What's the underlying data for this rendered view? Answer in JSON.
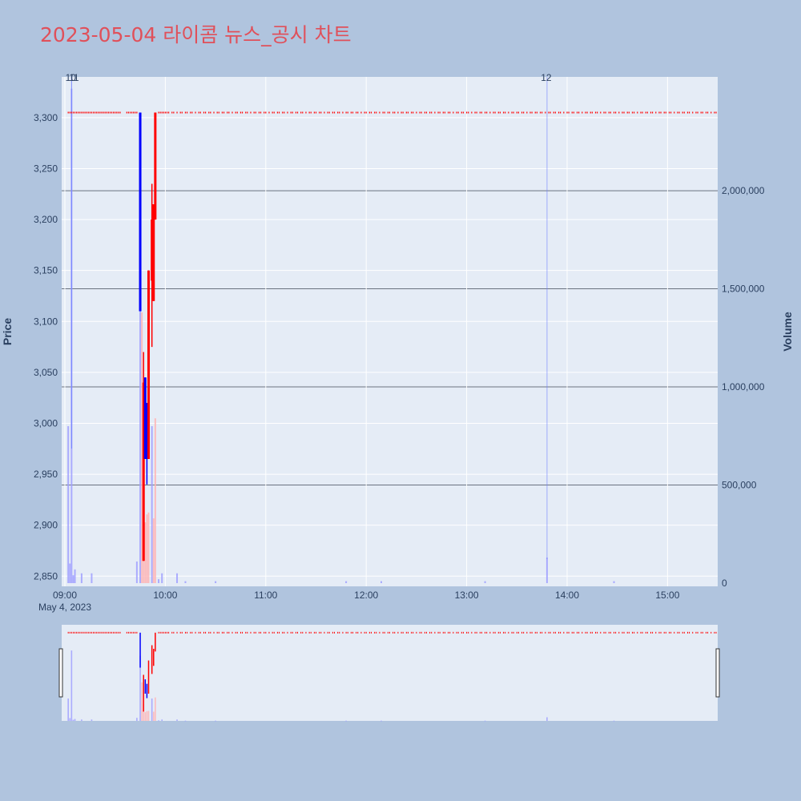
{
  "title": "2023-05-04 라이콤 뉴스_공시 차트",
  "colors": {
    "background": "#b0c4de",
    "plot_bg": "#e5ecf6",
    "up": "#ff0000",
    "down": "#0000ff",
    "title": "#e0505a",
    "volume_up": "#ffb4b4",
    "volume_down": "#a0a0ff"
  },
  "chart_data": {
    "type": "candlestick",
    "title": "2023-05-04 라이콤 뉴스_공시 차트",
    "ylabel": "Price",
    "y2label": "Volume",
    "ylim": [
      2840,
      3340
    ],
    "y2lim": [
      0,
      2580000
    ],
    "y_ticks": [
      "2,850",
      "2,900",
      "2,950",
      "3,000",
      "3,050",
      "3,100",
      "3,150",
      "3,200",
      "3,250",
      "3,300"
    ],
    "y2_ticks": [
      "0",
      "500,000",
      "1,000,000",
      "1,500,000",
      "2,000,000"
    ],
    "x_ticks": [
      "09:00",
      "10:00",
      "11:00",
      "12:00",
      "13:00",
      "14:00",
      "15:00"
    ],
    "x_date_label": "May 4, 2023",
    "annotations": [
      {
        "label": "10",
        "time": "09:04"
      },
      {
        "label": "11",
        "time": "09:04"
      },
      {
        "label": "12",
        "time": "13:48"
      }
    ],
    "candles": [
      {
        "time": "09:45",
        "open": 3305,
        "high": 3305,
        "low": 3110,
        "close": 3110
      },
      {
        "time": "09:47",
        "open": 2865,
        "high": 3070,
        "low": 2865,
        "close": 3040
      },
      {
        "time": "09:48",
        "open": 3045,
        "high": 3045,
        "low": 2965,
        "close": 2965
      },
      {
        "time": "09:49",
        "open": 3020,
        "high": 3020,
        "low": 2940,
        "close": 2965
      },
      {
        "time": "09:50",
        "open": 2965,
        "high": 3150,
        "low": 2965,
        "close": 3150
      },
      {
        "time": "09:52",
        "open": 3140,
        "high": 3235,
        "low": 3075,
        "close": 3200
      },
      {
        "time": "09:53",
        "open": 3120,
        "high": 3215,
        "low": 3120,
        "close": 3215
      },
      {
        "time": "09:54",
        "open": 3200,
        "high": 3305,
        "low": 3200,
        "close": 3305
      }
    ],
    "flat_price": 3305,
    "flat_start": "09:02",
    "flat_end": "15:30",
    "volume": [
      {
        "time": "09:02",
        "value": 800000,
        "dir": "down"
      },
      {
        "time": "09:03",
        "value": 100000,
        "dir": "down"
      },
      {
        "time": "09:04",
        "value": 2520000,
        "dir": "down"
      },
      {
        "time": "09:05",
        "value": 40000,
        "dir": "down"
      },
      {
        "time": "09:06",
        "value": 70000,
        "dir": "down"
      },
      {
        "time": "09:10",
        "value": 50000,
        "dir": "down"
      },
      {
        "time": "09:16",
        "value": 50000,
        "dir": "down"
      },
      {
        "time": "09:43",
        "value": 110000,
        "dir": "down"
      },
      {
        "time": "09:45",
        "value": 2330000,
        "dir": "down"
      },
      {
        "time": "09:46",
        "value": 1380000,
        "dir": "up"
      },
      {
        "time": "09:47",
        "value": 600000,
        "dir": "up"
      },
      {
        "time": "09:48",
        "value": 310000,
        "dir": "up"
      },
      {
        "time": "09:49",
        "value": 350000,
        "dir": "up"
      },
      {
        "time": "09:50",
        "value": 360000,
        "dir": "up"
      },
      {
        "time": "09:52",
        "value": 800000,
        "dir": "down"
      },
      {
        "time": "09:53",
        "value": 330000,
        "dir": "up"
      },
      {
        "time": "09:54",
        "value": 840000,
        "dir": "up"
      },
      {
        "time": "09:56",
        "value": 20000,
        "dir": "down"
      },
      {
        "time": "09:58",
        "value": 50000,
        "dir": "down"
      },
      {
        "time": "10:07",
        "value": 50000,
        "dir": "down"
      },
      {
        "time": "10:12",
        "value": 10000,
        "dir": "down"
      },
      {
        "time": "10:30",
        "value": 10000,
        "dir": "down"
      },
      {
        "time": "11:48",
        "value": 10000,
        "dir": "down"
      },
      {
        "time": "12:09",
        "value": 10000,
        "dir": "down"
      },
      {
        "time": "13:11",
        "value": 10000,
        "dir": "down"
      },
      {
        "time": "13:48",
        "value": 130000,
        "dir": "down"
      },
      {
        "time": "14:28",
        "value": 10000,
        "dir": "down"
      }
    ]
  }
}
